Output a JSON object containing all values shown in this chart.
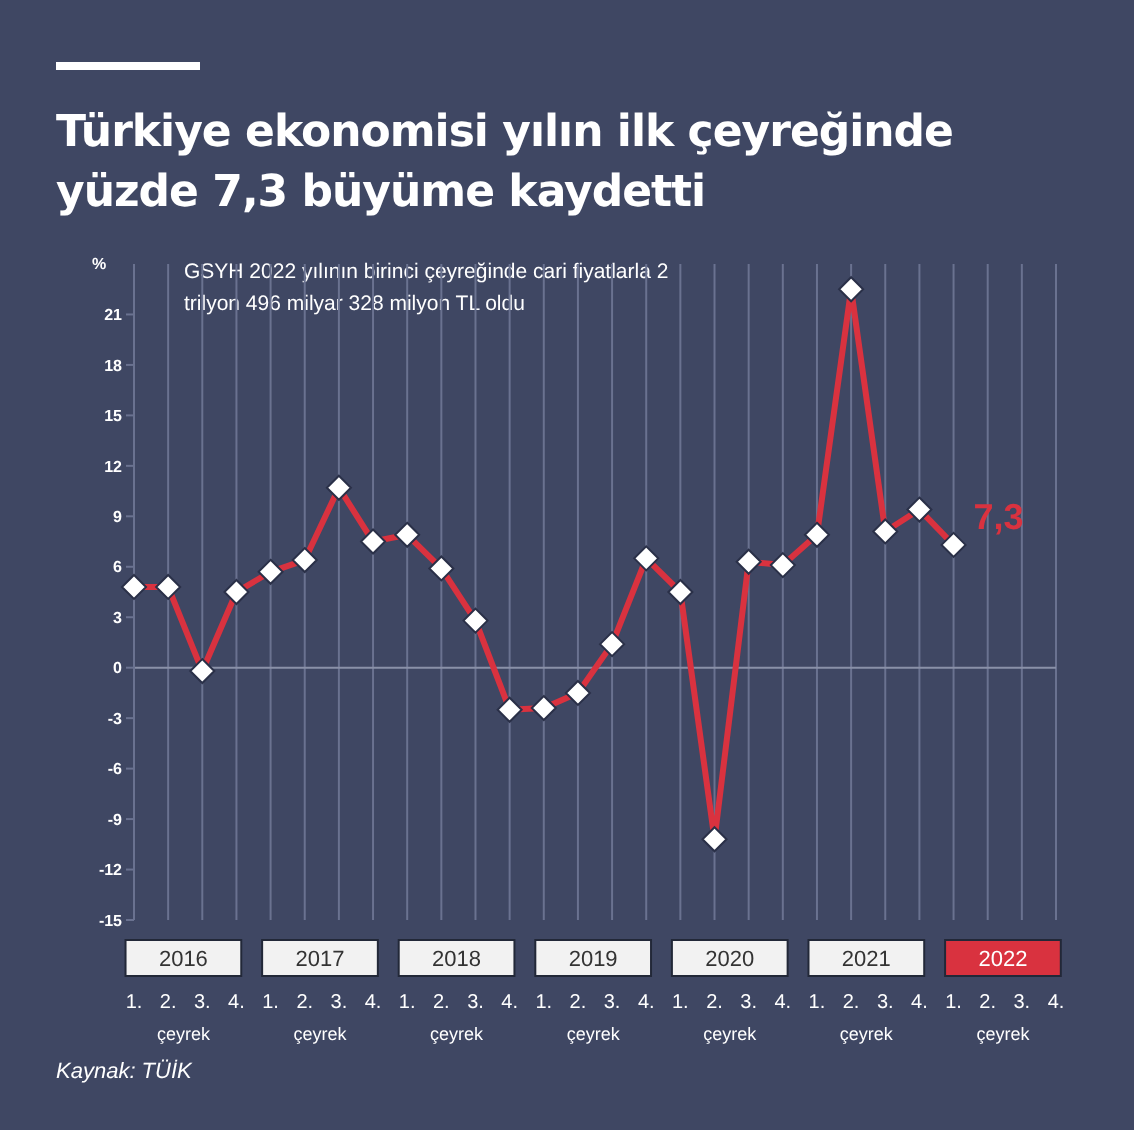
{
  "chart_data": {
    "type": "line",
    "title": "Türkiye ekonomisi yılın ilk çeyreğinde yüzde 7,3 büyüme kaydetti",
    "subtitle": "GSYH 2022 yılının birinci çeyreğinde cari fiyatlarla 2 trilyon 496 milyar 328 milyon TL oldu",
    "ylabel": "%",
    "xlabel": "çeyrek",
    "categories": [
      "1.",
      "2.",
      "3.",
      "4.",
      "1.",
      "2.",
      "3.",
      "4.",
      "1.",
      "2.",
      "3.",
      "4.",
      "1.",
      "2.",
      "3.",
      "4.",
      "1.",
      "2.",
      "3.",
      "4.",
      "1.",
      "2.",
      "3.",
      "4.",
      "1.",
      "2.",
      "3.",
      "4."
    ],
    "series": [
      {
        "color": "#d9323f",
        "values": [
          4.8,
          4.8,
          -0.2,
          4.5,
          5.7,
          6.4,
          10.7,
          7.5,
          7.9,
          5.9,
          2.8,
          -2.5,
          -2.4,
          -1.5,
          1.4,
          6.5,
          4.5,
          -10.2,
          6.3,
          6.1,
          7.9,
          22.5,
          8.1,
          9.4,
          7.3,
          null,
          null,
          null
        ],
        "value_labels": [
          null,
          null,
          null,
          null,
          null,
          null,
          null,
          null,
          null,
          null,
          null,
          null,
          null,
          null,
          null,
          null,
          null,
          null,
          null,
          null,
          null,
          null,
          null,
          null,
          "7,3",
          null,
          null,
          null
        ]
      }
    ],
    "annotations": [
      "2016",
      "2017",
      "2018",
      "2019",
      "2020",
      "2021",
      "2022",
      "Kaynak: TÜİK"
    ],
    "ylim": [
      -15,
      24
    ],
    "yticks": [
      -15,
      -12,
      -9,
      -6,
      -3,
      0,
      3,
      6,
      9,
      12,
      15,
      18,
      21
    ],
    "ref_lines": [
      {
        "axis": "y",
        "value": 0,
        "color": "#8a91a8"
      }
    ],
    "grid": "x",
    "marker": "diamond",
    "line_style": "solid"
  }
}
